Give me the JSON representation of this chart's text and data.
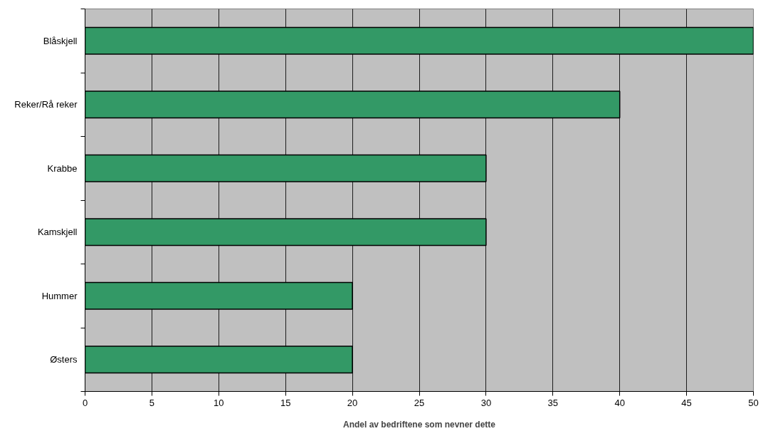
{
  "chart_data": {
    "type": "bar",
    "orientation": "horizontal",
    "categories": [
      "Blåskjell",
      "Reker/Rå reker",
      "Krabbe",
      "Kamskjell",
      "Hummer",
      "Østers"
    ],
    "values": [
      50,
      40,
      30,
      30,
      20,
      20
    ],
    "color": "#339966",
    "xlabel": "Andel av bedriftene som nevner dette",
    "xlim": [
      0,
      50
    ],
    "xticks": [
      0,
      5,
      10,
      15,
      20,
      25,
      30,
      35,
      40,
      45,
      50
    ],
    "grid": "x"
  }
}
